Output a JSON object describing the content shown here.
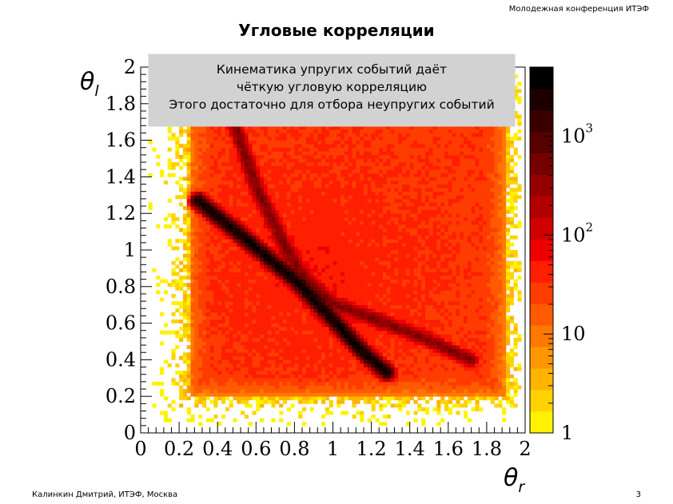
{
  "slide": {
    "header_right": "Молодежная конференция ИТЭФ",
    "title": "Угловые корреляции",
    "footer_left": "Калинкин Дмитрий, ИТЭФ, Москва",
    "page_number": "3"
  },
  "chart_data": {
    "type": "heatmap",
    "title": "",
    "xlabel": "θr",
    "ylabel": "θl",
    "xlim": [
      0,
      2
    ],
    "ylim": [
      0,
      2
    ],
    "x_ticks": [
      "0",
      "0.2",
      "0.4",
      "0.6",
      "0.8",
      "1",
      "1.2",
      "1.4",
      "1.6",
      "1.8",
      "2"
    ],
    "y_ticks": [
      "0",
      "0.2",
      "0.4",
      "0.6",
      "0.8",
      "1",
      "1.2",
      "1.4",
      "1.6",
      "1.8",
      "2"
    ],
    "z_scale": "log",
    "z_range": [
      1,
      5000
    ],
    "colorbar_ticks": [
      {
        "value": 1,
        "label": "1"
      },
      {
        "value": 10,
        "label": "10"
      },
      {
        "value": 100,
        "label": "10",
        "exponent": "2"
      },
      {
        "value": 1000,
        "label": "10",
        "exponent": "3"
      }
    ],
    "colorbar_colors": [
      "#fff200",
      "#ffd200",
      "#ffb400",
      "#ff9600",
      "#ff7800",
      "#ff5a00",
      "#ff3c00",
      "#ff1e00",
      "#ee0000",
      "#d00000",
      "#b20000",
      "#940000",
      "#760000",
      "#580000",
      "#3a0000",
      "#1c0000",
      "#000000"
    ],
    "bulk_region": {
      "x": [
        0.25,
        1.9
      ],
      "y": [
        0.2,
        1.85
      ],
      "level_counts": 30
    },
    "correlation_bands": [
      {
        "points": [
          [
            0.3,
            1.27
          ],
          [
            0.5,
            1.1
          ],
          [
            0.8,
            0.84
          ],
          [
            1.0,
            0.62
          ],
          [
            1.15,
            0.45
          ],
          [
            1.28,
            0.33
          ]
        ],
        "peak_counts": 3000
      },
      {
        "points": [
          [
            0.45,
            1.8
          ],
          [
            0.6,
            1.35
          ],
          [
            0.75,
            1.02
          ],
          [
            0.85,
            0.85
          ],
          [
            1.0,
            0.71
          ],
          [
            1.2,
            0.63
          ],
          [
            1.45,
            0.53
          ],
          [
            1.72,
            0.4
          ]
        ],
        "peak_counts": 400
      }
    ],
    "annotation": [
      "Кинематика упругих событий даёт",
      "чёткую угловую корреляцию",
      "Этого достаточно для отбора неупругих событий"
    ]
  }
}
